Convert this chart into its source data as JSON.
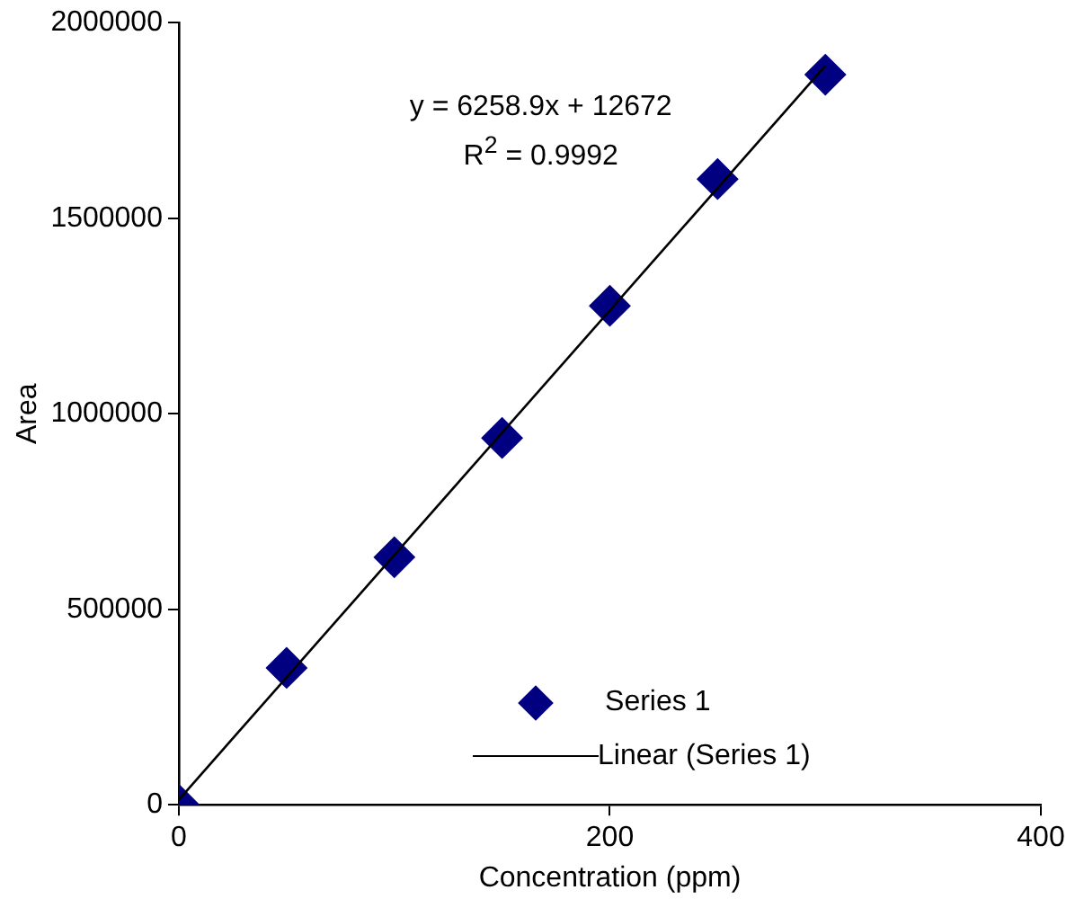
{
  "chart_data": {
    "type": "scatter",
    "xlabel": "Concentration (ppm)",
    "ylabel": "Area",
    "xlim": [
      0,
      400
    ],
    "xticks": [
      0,
      200,
      400
    ],
    "ylim": [
      0,
      2000000
    ],
    "yticks": [
      0,
      500000,
      1000000,
      1500000,
      2000000
    ],
    "grid": false,
    "legend": "bottom right",
    "marker": "diamond",
    "annotations": [
      "y = 6258.9x + 12672",
      "R$^{2}$ = 0.9992"
    ],
    "series": [
      {
        "name": "Series 1",
        "type": "scatter",
        "color": "#000080",
        "x": [
          0,
          50,
          100,
          150,
          200,
          250,
          300
        ],
        "values": [
          0,
          350000,
          633000,
          938000,
          1276000,
          1600000,
          1867000
        ]
      },
      {
        "name": "Linear (Series 1)",
        "type": "line",
        "color": "#000000",
        "marker": "none",
        "x": [
          0,
          300
        ],
        "values": [
          13000,
          1890000
        ]
      }
    ]
  }
}
